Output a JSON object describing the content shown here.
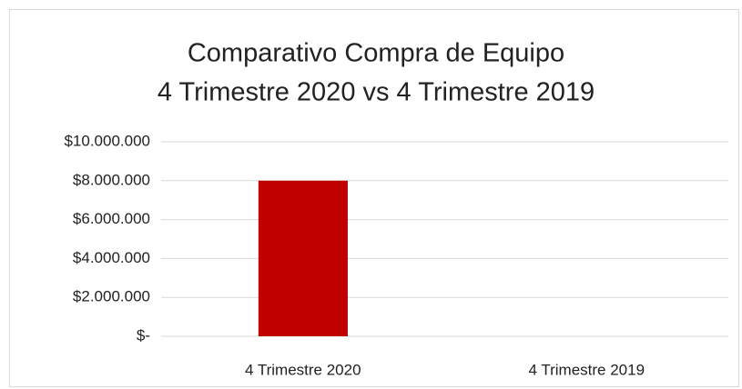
{
  "chart_data": {
    "type": "bar",
    "title": "Comparativo Compra de Equipo",
    "subtitle": "4 Trimestre 2020 vs 4 Trimestre 2019",
    "categories": [
      "4 Trimestre 2020",
      "4 Trimestre 2019"
    ],
    "values": [
      8000000,
      0
    ],
    "color": "#c00000",
    "ylim": [
      0,
      10000000
    ],
    "yticks": [
      {
        "value": 0,
        "label": "$-"
      },
      {
        "value": 2000000,
        "label": "$2.000.000"
      },
      {
        "value": 4000000,
        "label": "$4.000.000"
      },
      {
        "value": 6000000,
        "label": "$6.000.000"
      },
      {
        "value": 8000000,
        "label": "$8.000.000"
      },
      {
        "value": 10000000,
        "label": "$10.000.000"
      }
    ],
    "grid": true
  }
}
